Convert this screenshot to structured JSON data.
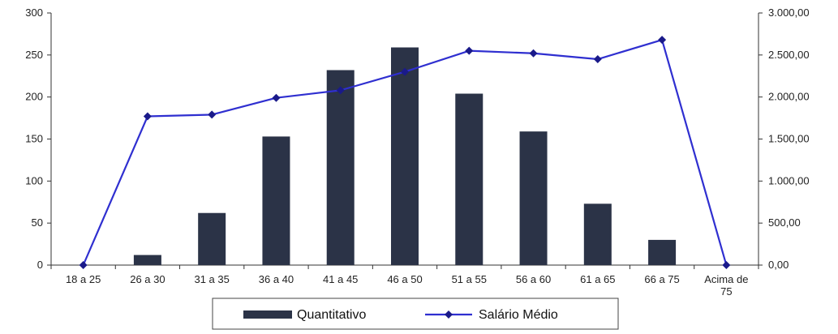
{
  "chart_data": {
    "type": "bar",
    "categories": [
      "18 a 25",
      "26 a 30",
      "31 a 35",
      "36 a 40",
      "41 a 45",
      "46 a 50",
      "51 a 55",
      "56 a 60",
      "61 a 65",
      "66 a 75",
      "Acima de 75"
    ],
    "series": [
      {
        "name": "Quantitativo",
        "type": "bar",
        "axis": "left",
        "color": "#2b3347",
        "values": [
          0,
          12,
          62,
          153,
          232,
          259,
          204,
          159,
          73,
          30,
          0
        ]
      },
      {
        "name": "Salário Médio",
        "type": "line",
        "axis": "right",
        "color": "#2f2fd0",
        "values": [
          0,
          1770,
          1790,
          1990,
          2080,
          2300,
          2550,
          2520,
          2450,
          2680,
          0
        ]
      }
    ],
    "y_left": {
      "min": 0,
      "max": 300,
      "ticks": [
        0,
        50,
        100,
        150,
        200,
        250,
        300
      ],
      "tick_labels": [
        "0",
        "50",
        "100",
        "150",
        "200",
        "250",
        "300"
      ]
    },
    "y_right": {
      "min": 0,
      "max": 3000,
      "ticks": [
        0,
        500,
        1000,
        1500,
        2000,
        2500,
        3000
      ],
      "tick_labels": [
        "0,00",
        "500,00",
        "1.000,00",
        "1.500,00",
        "2.000,00",
        "2.500,00",
        "3.000,00"
      ]
    },
    "legend": {
      "placement": "bottom",
      "items": [
        "Quantitativo",
        "Salário Médio"
      ]
    },
    "grid": false,
    "title": "",
    "xlabel": "",
    "ylabel": ""
  }
}
